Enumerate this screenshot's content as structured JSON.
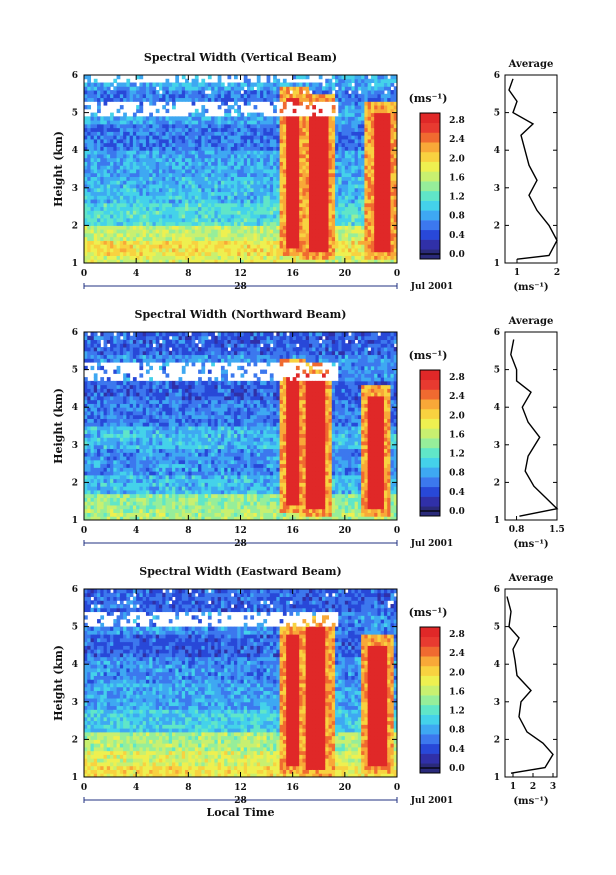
{
  "chart_data": [
    {
      "type": "heatmap",
      "title": "Spectral Width (Vertical Beam)",
      "ylabel": "Height (km)",
      "xlabel": "",
      "x_ticks": [
        "0",
        "4",
        "8",
        "12",
        "16",
        "20",
        "0"
      ],
      "xlim": [
        0,
        24
      ],
      "y_ticks": [
        "1",
        "2",
        "3",
        "4",
        "5",
        "6"
      ],
      "ylim": [
        1,
        6
      ],
      "date_day": "28",
      "date_label": "Jul 2001",
      "colorbar": {
        "unit": "(ms⁻¹)",
        "ticks": [
          "0.0",
          "0.4",
          "0.8",
          "1.2",
          "1.6",
          "2.0",
          "2.4",
          "2.8"
        ],
        "range": [
          0,
          3.0
        ]
      },
      "bands": [
        {
          "y": [
            1.0,
            1.2
          ],
          "value": 1.8
        },
        {
          "y": [
            1.2,
            1.6
          ],
          "value": 2.0
        },
        {
          "y": [
            1.6,
            2.0
          ],
          "value": 1.7
        },
        {
          "y": [
            2.0,
            2.6
          ],
          "value": 1.2
        },
        {
          "y": [
            2.6,
            3.3
          ],
          "value": 1.0
        },
        {
          "y": [
            3.3,
            4.0
          ],
          "value": 0.9
        },
        {
          "y": [
            4.0,
            4.7
          ],
          "value": 0.7
        },
        {
          "y": [
            4.7,
            5.2
          ],
          "value": 0.9
        },
        {
          "y": [
            5.2,
            5.6
          ],
          "value": 0.7
        },
        {
          "y": [
            5.6,
            6.0
          ],
          "value": 0.9
        }
      ],
      "gaps": [
        {
          "y": [
            4.9,
            5.25
          ]
        },
        {
          "y": [
            5.85,
            6.0
          ]
        }
      ],
      "events": [
        {
          "x": [
            15.6,
            16.6
          ],
          "y": [
            1.4,
            5.4
          ],
          "value": 3.0
        },
        {
          "x": [
            17.2,
            18.7
          ],
          "y": [
            1.3,
            5.2
          ],
          "value": 3.0
        },
        {
          "x": [
            22.2,
            23.4
          ],
          "y": [
            1.3,
            5.0
          ],
          "value": 3.0
        }
      ],
      "profile": {
        "title": "Average",
        "xlabel": "(ms⁻¹)",
        "x_ticks": [
          "1",
          "2"
        ],
        "xlim": [
          0.7,
          2.0
        ],
        "y_ticks": [
          "1",
          "2",
          "3",
          "4",
          "5",
          "6"
        ],
        "points": [
          [
            1.0,
            1.1
          ],
          [
            1.8,
            1.2
          ],
          [
            2.0,
            1.6
          ],
          [
            1.8,
            2.0
          ],
          [
            1.5,
            2.4
          ],
          [
            1.3,
            2.8
          ],
          [
            1.5,
            3.2
          ],
          [
            1.3,
            3.6
          ],
          [
            1.2,
            4.0
          ],
          [
            1.1,
            4.4
          ],
          [
            1.4,
            4.7
          ],
          [
            0.9,
            5.0
          ],
          [
            1.0,
            5.3
          ],
          [
            0.8,
            5.6
          ],
          [
            0.9,
            5.9
          ]
        ]
      }
    },
    {
      "type": "heatmap",
      "title": "Spectral Width (Northward Beam)",
      "ylabel": "Height (km)",
      "xlabel": "",
      "x_ticks": [
        "0",
        "4",
        "8",
        "12",
        "16",
        "20",
        "0"
      ],
      "xlim": [
        0,
        24
      ],
      "y_ticks": [
        "1",
        "2",
        "3",
        "4",
        "5",
        "6"
      ],
      "ylim": [
        1,
        6
      ],
      "date_day": "28",
      "date_label": "Jul 2001",
      "colorbar": {
        "unit": "(ms⁻¹)",
        "ticks": [
          "0.0",
          "0.4",
          "0.8",
          "1.2",
          "1.6",
          "2.0",
          "2.4",
          "2.8"
        ],
        "range": [
          0,
          3.0
        ]
      },
      "bands": [
        {
          "y": [
            1.0,
            1.3
          ],
          "value": 1.6
        },
        {
          "y": [
            1.3,
            1.7
          ],
          "value": 1.5
        },
        {
          "y": [
            1.7,
            2.2
          ],
          "value": 1.0
        },
        {
          "y": [
            2.2,
            2.9
          ],
          "value": 0.8
        },
        {
          "y": [
            2.9,
            3.5
          ],
          "value": 1.0
        },
        {
          "y": [
            3.5,
            4.2
          ],
          "value": 0.7
        },
        {
          "y": [
            4.2,
            4.7
          ],
          "value": 0.6
        },
        {
          "y": [
            4.7,
            5.4
          ],
          "value": 0.8
        },
        {
          "y": [
            5.4,
            6.0
          ],
          "value": 0.6
        }
      ],
      "gaps": [
        {
          "y": [
            4.7,
            5.15
          ]
        }
      ],
      "events": [
        {
          "x": [
            15.6,
            16.5
          ],
          "y": [
            1.4,
            5.0
          ],
          "value": 2.9
        },
        {
          "x": [
            17.0,
            18.5
          ],
          "y": [
            1.3,
            4.9
          ],
          "value": 3.0
        },
        {
          "x": [
            21.8,
            23.0
          ],
          "y": [
            1.3,
            4.3
          ],
          "value": 3.0
        }
      ],
      "profile": {
        "title": "Average",
        "xlabel": "(ms⁻¹)",
        "x_ticks": [
          "0.8",
          "1.5"
        ],
        "xlim": [
          0.6,
          1.5
        ],
        "y_ticks": [
          "1",
          "2",
          "3",
          "4",
          "5",
          "6"
        ],
        "points": [
          [
            0.85,
            1.1
          ],
          [
            1.5,
            1.3
          ],
          [
            1.3,
            1.6
          ],
          [
            1.1,
            1.9
          ],
          [
            0.95,
            2.3
          ],
          [
            1.0,
            2.7
          ],
          [
            1.2,
            3.2
          ],
          [
            1.0,
            3.6
          ],
          [
            0.9,
            4.0
          ],
          [
            1.05,
            4.4
          ],
          [
            0.8,
            4.7
          ],
          [
            0.8,
            5.0
          ],
          [
            0.7,
            5.4
          ],
          [
            0.75,
            5.8
          ]
        ]
      }
    },
    {
      "type": "heatmap",
      "title": "Spectral Width (Eastward Beam)",
      "ylabel": "Height (km)",
      "xlabel": "Local Time",
      "x_ticks": [
        "0",
        "4",
        "8",
        "12",
        "16",
        "20",
        "0"
      ],
      "xlim": [
        0,
        24
      ],
      "y_ticks": [
        "1",
        "2",
        "3",
        "4",
        "5",
        "6"
      ],
      "ylim": [
        1,
        6
      ],
      "date_day": "28",
      "date_label": "Jul 2001",
      "colorbar": {
        "unit": "(ms⁻¹)",
        "ticks": [
          "0.0",
          "0.4",
          "0.8",
          "1.2",
          "1.6",
          "2.0",
          "2.4",
          "2.8"
        ],
        "range": [
          0,
          3.0
        ]
      },
      "bands": [
        {
          "y": [
            1.0,
            1.3
          ],
          "value": 2.0
        },
        {
          "y": [
            1.3,
            1.7
          ],
          "value": 1.8
        },
        {
          "y": [
            1.7,
            2.2
          ],
          "value": 1.6
        },
        {
          "y": [
            2.2,
            2.8
          ],
          "value": 1.1
        },
        {
          "y": [
            2.8,
            3.5
          ],
          "value": 0.9
        },
        {
          "y": [
            3.5,
            4.2
          ],
          "value": 0.8
        },
        {
          "y": [
            4.2,
            4.8
          ],
          "value": 0.6
        },
        {
          "y": [
            4.8,
            5.4
          ],
          "value": 0.8
        },
        {
          "y": [
            5.4,
            6.0
          ],
          "value": 0.6
        }
      ],
      "gaps": [
        {
          "y": [
            5.05,
            5.4
          ]
        }
      ],
      "events": [
        {
          "x": [
            15.6,
            16.6
          ],
          "y": [
            1.3,
            4.8
          ],
          "value": 2.9
        },
        {
          "x": [
            17.0,
            18.6
          ],
          "y": [
            1.2,
            5.0
          ],
          "value": 3.0
        },
        {
          "x": [
            21.8,
            23.2
          ],
          "y": [
            1.3,
            4.5
          ],
          "value": 3.0
        }
      ],
      "profile": {
        "title": "Average",
        "xlabel": "(ms⁻¹)",
        "x_ticks": [
          "1",
          "2",
          "3"
        ],
        "xlim": [
          0.6,
          3.2
        ],
        "y_ticks": [
          "1",
          "2",
          "3",
          "4",
          "5",
          "6"
        ],
        "points": [
          [
            0.9,
            1.1
          ],
          [
            2.6,
            1.25
          ],
          [
            3.0,
            1.6
          ],
          [
            2.5,
            1.9
          ],
          [
            1.7,
            2.2
          ],
          [
            1.3,
            2.6
          ],
          [
            1.4,
            3.0
          ],
          [
            1.9,
            3.3
          ],
          [
            1.2,
            3.7
          ],
          [
            1.1,
            4.1
          ],
          [
            1.0,
            4.4
          ],
          [
            1.3,
            4.7
          ],
          [
            0.8,
            5.0
          ],
          [
            0.9,
            5.4
          ],
          [
            0.7,
            5.8
          ]
        ]
      }
    }
  ]
}
